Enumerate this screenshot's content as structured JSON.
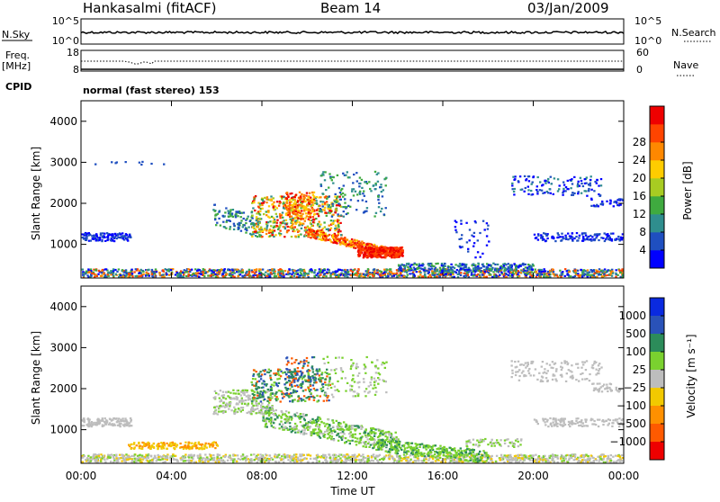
{
  "header": {
    "station": "Hankasalmi (fitACF)",
    "beam": "Beam 14",
    "date": "03/Jan/2009"
  },
  "noise_panel": {
    "left_label": "N.Sky",
    "left_ticks": [
      "10^5",
      "10^0"
    ],
    "right_label": "N.Search",
    "right_ticks": [
      "10^5",
      "10^0"
    ]
  },
  "freq_panel": {
    "left_label_1": "Freq.",
    "left_label_2": "[MHz]",
    "left_ticks": [
      "18",
      "8"
    ],
    "right_label": "Nave",
    "right_ticks": [
      "60",
      "0"
    ],
    "cpid_label": "CPID",
    "mode_text": "normal (fast stereo) 153"
  },
  "chart_data": [
    {
      "type": "heatmap",
      "name": "power-panel",
      "ylabel": "Slant Range [km]",
      "yticks": [
        "1000",
        "2000",
        "3000",
        "4000"
      ],
      "ylim": [
        180,
        4500
      ],
      "xlim_hours": [
        0,
        24
      ],
      "colorbar": {
        "label": "Power [dB]",
        "ticks": [
          "4",
          "8",
          "12",
          "16",
          "20",
          "24",
          "28"
        ],
        "colors": [
          "#0000ff",
          "#1f4fc0",
          "#2f8e8e",
          "#3faa3f",
          "#a8cc22",
          "#ffcc00",
          "#ff8800",
          "#ff4400",
          "#ee0000"
        ]
      }
    },
    {
      "type": "heatmap",
      "name": "velocity-panel",
      "ylabel": "Slant Range [km]",
      "yticks": [
        "1000",
        "2000",
        "3000",
        "4000"
      ],
      "ylim": [
        180,
        4500
      ],
      "xlim_hours": [
        0,
        24
      ],
      "colorbar": {
        "label": "Velocity [m s⁻¹]",
        "ticks": [
          "1000",
          "500",
          "100",
          "25",
          "−25",
          "−100",
          "−500",
          "−1000"
        ],
        "colors": [
          "#0a2ae0",
          "#2a52b8",
          "#2c8c5a",
          "#7ad12f",
          "#bdbdbd",
          "#f2c900",
          "#ff9000",
          "#ff5a00",
          "#ee0000"
        ]
      }
    }
  ],
  "x_axis": {
    "ticks": [
      "00:00",
      "04:00",
      "08:00",
      "12:00",
      "16:00",
      "20:00",
      "00:00"
    ],
    "label": "Time UT"
  }
}
